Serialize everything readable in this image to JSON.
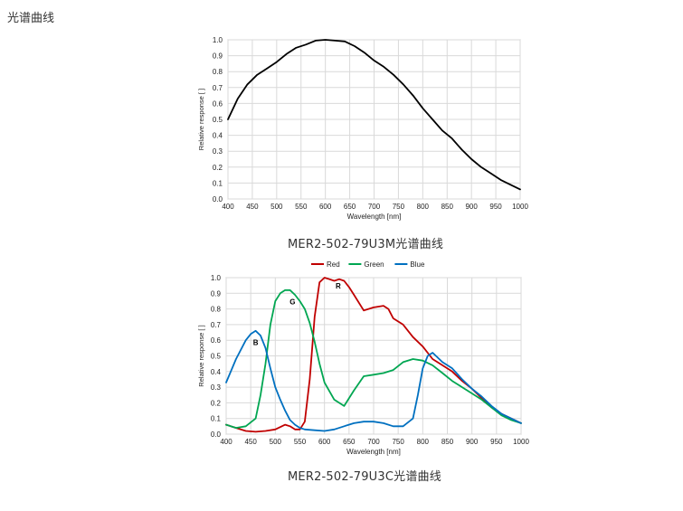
{
  "page": {
    "title": "光谱曲线"
  },
  "figures": [
    {
      "caption": "MER2-502-79U3M光谱曲线"
    },
    {
      "caption": "MER2-502-79U3C光谱曲线"
    }
  ],
  "chart_data": [
    {
      "type": "line",
      "xlabel": "Wavelength [nm]",
      "ylabel": "Relative response [ ]",
      "xlim": [
        400,
        1000
      ],
      "ylim": [
        0,
        1.0
      ],
      "x_ticks": [
        400,
        450,
        500,
        550,
        600,
        650,
        700,
        750,
        800,
        850,
        900,
        950,
        1000
      ],
      "y_ticks": [
        0.0,
        0.1,
        0.2,
        0.3,
        0.4,
        0.5,
        0.6,
        0.7,
        0.8,
        0.9,
        1.0
      ],
      "grid": true,
      "series": [
        {
          "color": "#000000",
          "x": [
            400,
            420,
            440,
            460,
            480,
            500,
            520,
            540,
            560,
            580,
            600,
            620,
            640,
            660,
            680,
            700,
            720,
            740,
            760,
            780,
            800,
            820,
            840,
            860,
            880,
            900,
            920,
            940,
            960,
            980,
            1000
          ],
          "y": [
            0.5,
            0.63,
            0.72,
            0.78,
            0.82,
            0.86,
            0.91,
            0.95,
            0.97,
            0.995,
            1.0,
            0.995,
            0.99,
            0.96,
            0.92,
            0.87,
            0.83,
            0.78,
            0.72,
            0.65,
            0.57,
            0.5,
            0.43,
            0.38,
            0.31,
            0.25,
            0.2,
            0.16,
            0.12,
            0.09,
            0.06
          ]
        }
      ]
    },
    {
      "type": "line",
      "xlabel": "Wavelength [nm]",
      "ylabel": "Relative response [ ]",
      "xlim": [
        400,
        1000
      ],
      "ylim": [
        0,
        1.0
      ],
      "x_ticks": [
        400,
        450,
        500,
        550,
        600,
        650,
        700,
        750,
        800,
        850,
        900,
        950,
        1000
      ],
      "y_ticks": [
        0.0,
        0.1,
        0.2,
        0.3,
        0.4,
        0.5,
        0.6,
        0.7,
        0.8,
        0.9,
        1.0
      ],
      "grid": true,
      "legend_position": "top-center",
      "annotations": [
        {
          "text": "R",
          "x": 628,
          "y": 0.93
        },
        {
          "text": "G",
          "x": 535,
          "y": 0.83
        },
        {
          "text": "B",
          "x": 460,
          "y": 0.57
        }
      ],
      "series": [
        {
          "name": "Red",
          "color": "#c00000",
          "x": [
            400,
            420,
            440,
            460,
            480,
            500,
            520,
            530,
            540,
            550,
            560,
            570,
            580,
            590,
            600,
            610,
            620,
            630,
            640,
            650,
            660,
            680,
            700,
            720,
            730,
            740,
            760,
            780,
            800,
            820,
            840,
            860,
            880,
            900,
            920,
            940,
            960,
            980,
            1000
          ],
          "y": [
            0.06,
            0.04,
            0.02,
            0.015,
            0.02,
            0.03,
            0.06,
            0.05,
            0.03,
            0.03,
            0.08,
            0.35,
            0.75,
            0.97,
            1.0,
            0.99,
            0.98,
            0.99,
            0.98,
            0.94,
            0.89,
            0.79,
            0.81,
            0.82,
            0.8,
            0.74,
            0.7,
            0.62,
            0.56,
            0.48,
            0.44,
            0.4,
            0.34,
            0.29,
            0.23,
            0.17,
            0.13,
            0.1,
            0.07
          ]
        },
        {
          "name": "Green",
          "color": "#00a651",
          "x": [
            400,
            420,
            440,
            460,
            470,
            480,
            490,
            500,
            510,
            520,
            530,
            540,
            550,
            560,
            570,
            580,
            590,
            600,
            620,
            640,
            660,
            680,
            700,
            720,
            740,
            760,
            780,
            800,
            820,
            840,
            860,
            880,
            900,
            920,
            940,
            960,
            980,
            1000
          ],
          "y": [
            0.06,
            0.04,
            0.05,
            0.1,
            0.25,
            0.45,
            0.7,
            0.85,
            0.9,
            0.92,
            0.92,
            0.89,
            0.85,
            0.8,
            0.71,
            0.59,
            0.45,
            0.33,
            0.22,
            0.18,
            0.28,
            0.37,
            0.38,
            0.39,
            0.41,
            0.46,
            0.48,
            0.47,
            0.44,
            0.39,
            0.34,
            0.3,
            0.26,
            0.22,
            0.17,
            0.12,
            0.09,
            0.07
          ]
        },
        {
          "name": "Blue",
          "color": "#0070c0",
          "x": [
            400,
            420,
            440,
            450,
            460,
            470,
            480,
            490,
            500,
            510,
            520,
            530,
            540,
            550,
            560,
            580,
            600,
            620,
            640,
            660,
            680,
            700,
            720,
            740,
            760,
            780,
            790,
            800,
            810,
            820,
            840,
            860,
            880,
            900,
            920,
            940,
            960,
            980,
            1000
          ],
          "y": [
            0.33,
            0.48,
            0.6,
            0.64,
            0.66,
            0.63,
            0.55,
            0.42,
            0.3,
            0.22,
            0.15,
            0.09,
            0.06,
            0.04,
            0.03,
            0.025,
            0.02,
            0.03,
            0.05,
            0.07,
            0.08,
            0.08,
            0.07,
            0.05,
            0.05,
            0.1,
            0.25,
            0.42,
            0.5,
            0.52,
            0.46,
            0.42,
            0.35,
            0.29,
            0.24,
            0.18,
            0.13,
            0.1,
            0.07
          ]
        }
      ]
    }
  ]
}
